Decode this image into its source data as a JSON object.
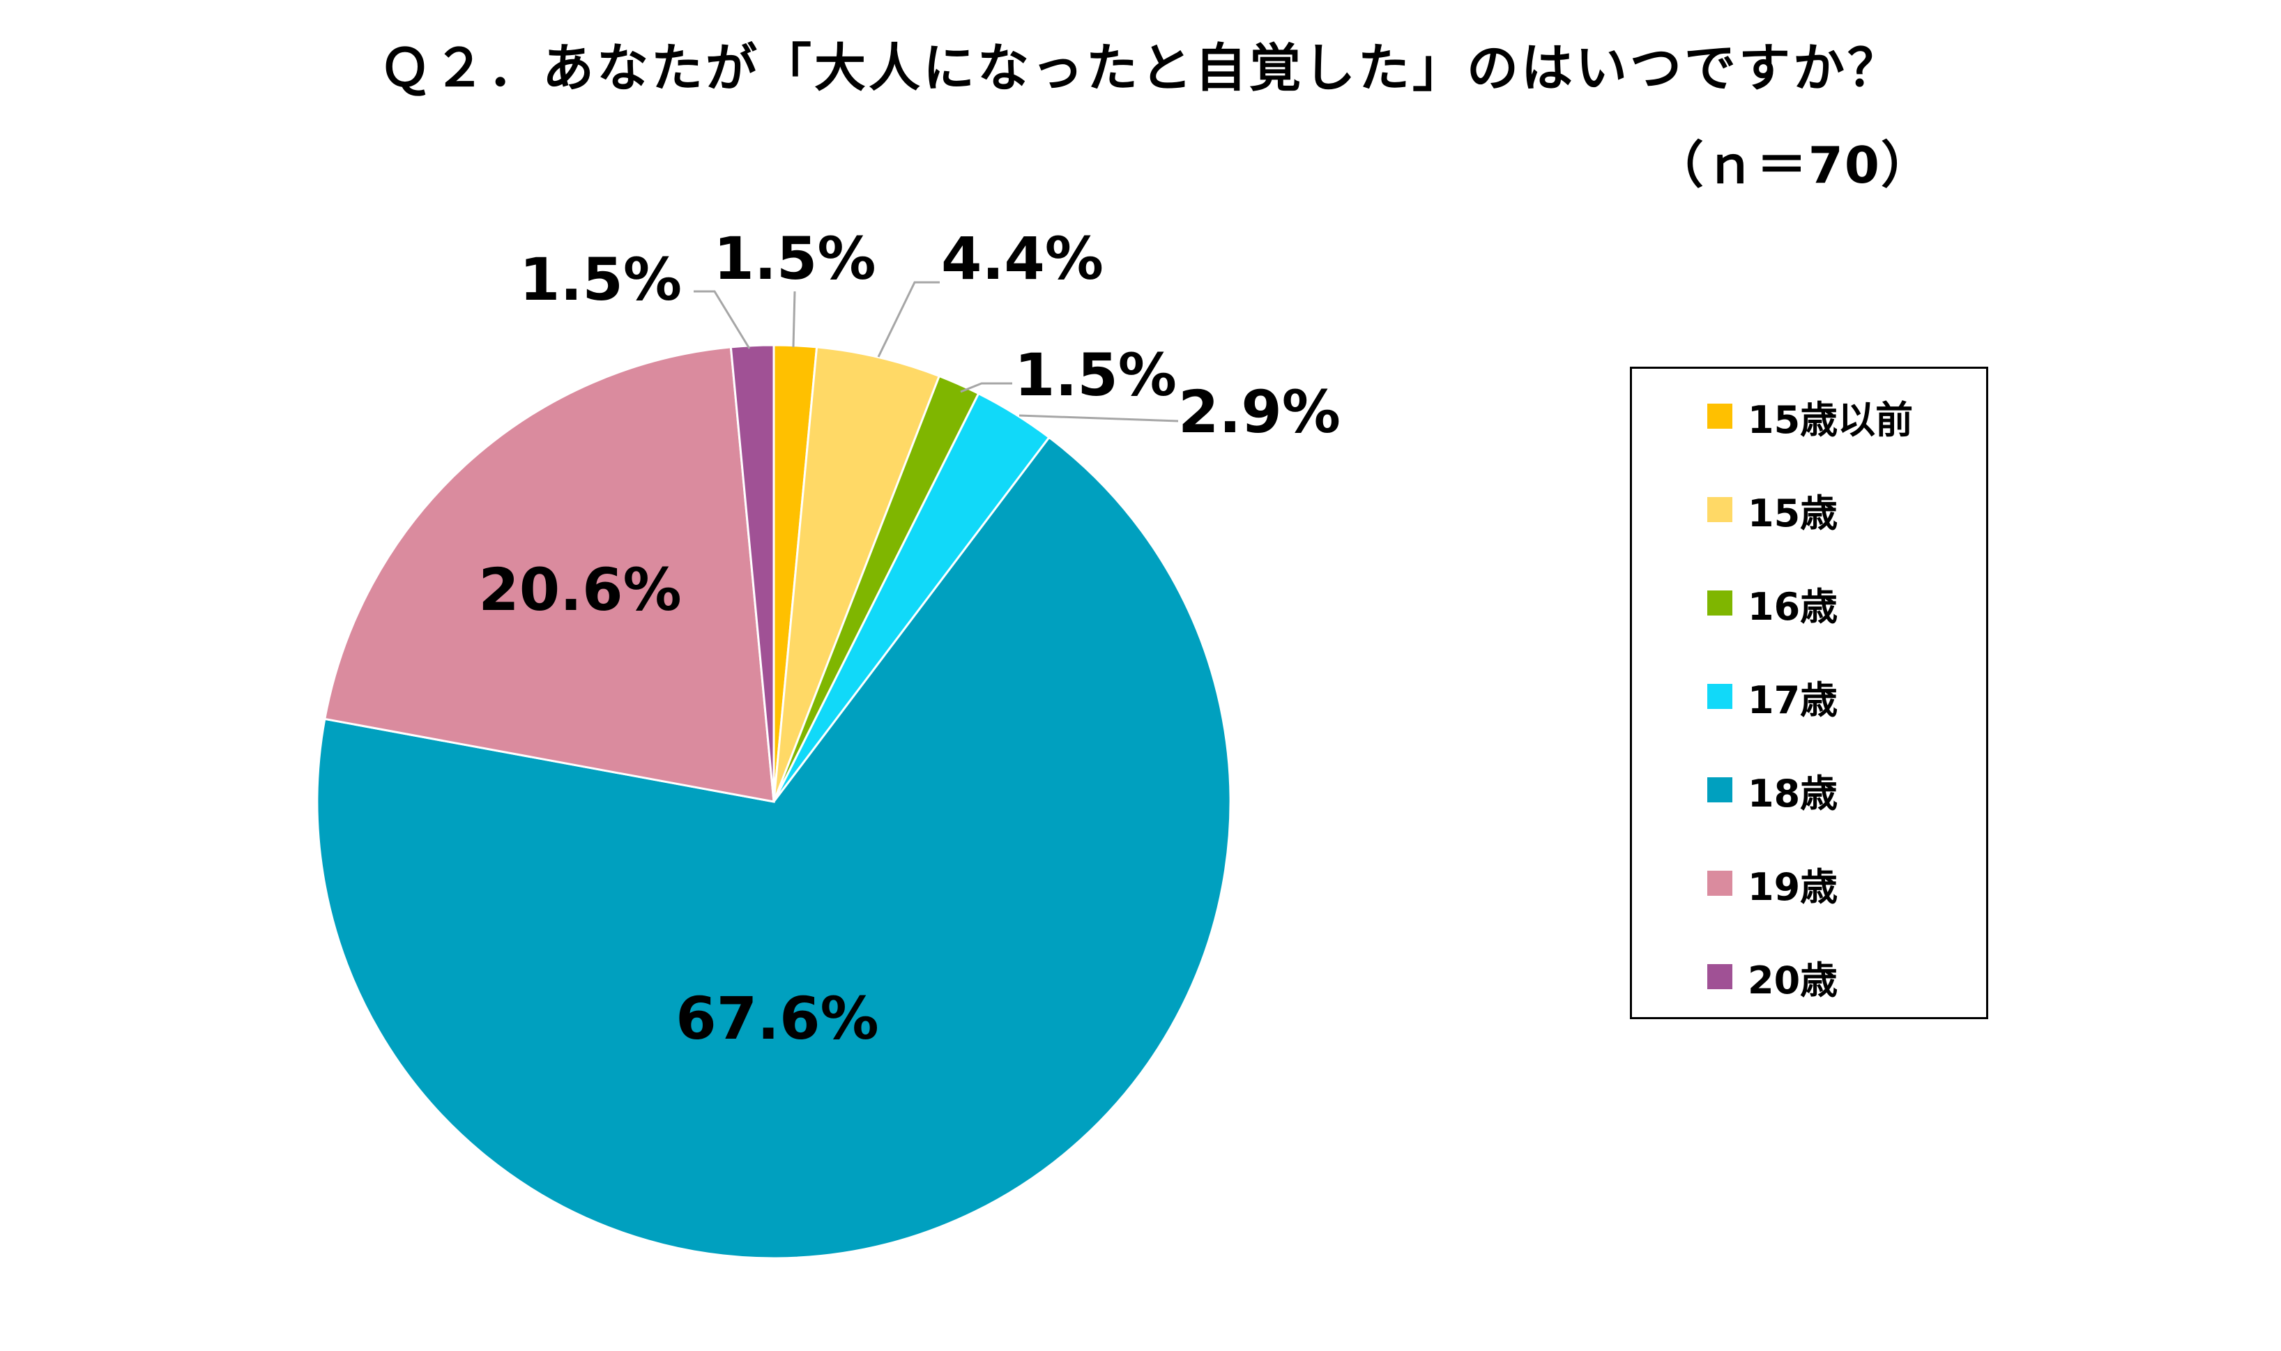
{
  "title": "Ｑ２．あなたが「大人になったと自覚した」のはいつですか？",
  "subtitle": "（ｎ＝70）",
  "colors": {
    "background": "#ffffff",
    "leader_line": "#a6a6a6",
    "label_text": "#000000"
  },
  "chart_data": {
    "type": "pie",
    "title": "Ｑ２．あなたが「大人になったと自覚した」のはいつですか？",
    "subtitle": "（ｎ＝70）",
    "legend_position": "right",
    "categories": [
      "15歳以前",
      "15歳",
      "16歳",
      "17歳",
      "18歳",
      "19歳",
      "20歳"
    ],
    "values": [
      1.5,
      4.4,
      1.5,
      2.9,
      67.6,
      20.6,
      1.5
    ],
    "value_labels": [
      "1.5%",
      "4.4%",
      "1.5%",
      "2.9%",
      "67.6%",
      "20.6%",
      "1.5%"
    ],
    "colors": [
      "#ffc000",
      "#ffd966",
      "#7fb600",
      "#11d9f9",
      "#00a0bf",
      "#da8b9e",
      "#a05195"
    ],
    "unit": "%"
  }
}
